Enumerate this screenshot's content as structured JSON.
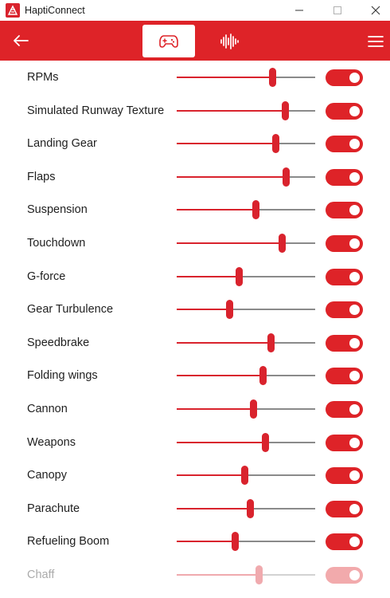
{
  "window": {
    "title": "HaptiConnect"
  },
  "header": {
    "back_icon": "arrow-left-icon",
    "tabs": [
      {
        "icon": "gamepad-icon",
        "active": true
      },
      {
        "icon": "waveform-icon",
        "active": false
      }
    ],
    "menu_icon": "hamburger-menu-icon"
  },
  "colors": {
    "accent": "#de2328",
    "track": "#8a8a8a",
    "background": "#ffffff"
  },
  "effects": [
    {
      "label": "RPMs",
      "level": 0.69,
      "enabled": true
    },
    {
      "label": "Simulated Runway Texture",
      "level": 0.78,
      "enabled": true
    },
    {
      "label": "Landing Gear",
      "level": 0.71,
      "enabled": true
    },
    {
      "label": "Flaps",
      "level": 0.79,
      "enabled": true
    },
    {
      "label": "Suspension",
      "level": 0.57,
      "enabled": true
    },
    {
      "label": "Touchdown",
      "level": 0.76,
      "enabled": true
    },
    {
      "label": "G-force",
      "level": 0.45,
      "enabled": true
    },
    {
      "label": "Gear Turbulence",
      "level": 0.38,
      "enabled": true
    },
    {
      "label": "Speedbrake",
      "level": 0.68,
      "enabled": true
    },
    {
      "label": "Folding wings",
      "level": 0.62,
      "enabled": true
    },
    {
      "label": "Cannon",
      "level": 0.55,
      "enabled": true
    },
    {
      "label": "Weapons",
      "level": 0.64,
      "enabled": true
    },
    {
      "label": "Canopy",
      "level": 0.49,
      "enabled": true
    },
    {
      "label": "Parachute",
      "level": 0.53,
      "enabled": true
    },
    {
      "label": "Refueling Boom",
      "level": 0.42,
      "enabled": true
    },
    {
      "label": "Chaff",
      "level": 0.59,
      "enabled": true,
      "faded": true
    }
  ]
}
